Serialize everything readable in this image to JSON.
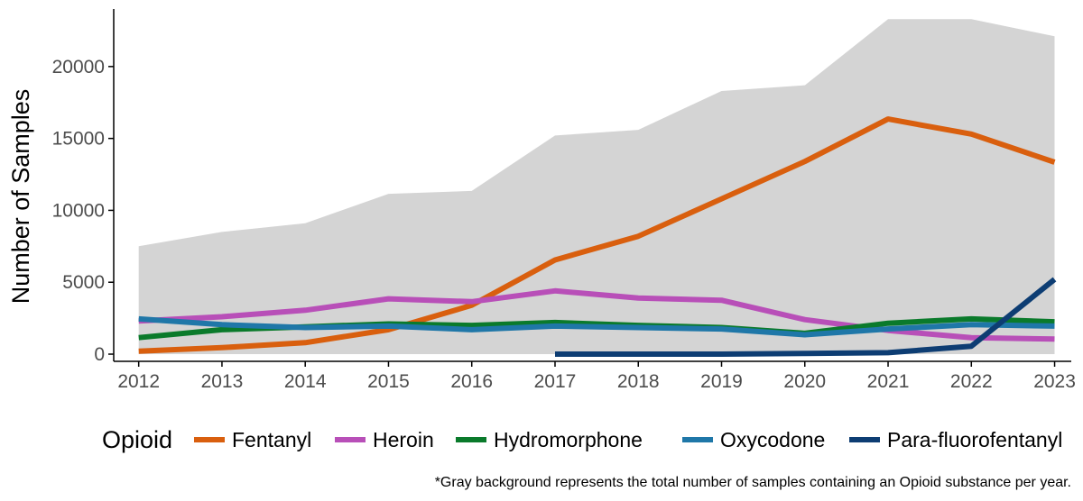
{
  "chart_data": {
    "type": "line",
    "title": "",
    "xlabel": "",
    "ylabel": "Number of Samples",
    "x": [
      2012,
      2013,
      2014,
      2015,
      2016,
      2017,
      2018,
      2019,
      2020,
      2021,
      2022,
      2023
    ],
    "xlim": [
      2011.7,
      2023.2
    ],
    "ylim": [
      -500,
      24000
    ],
    "yticks": [
      0,
      5000,
      10000,
      15000,
      20000
    ],
    "grid": false,
    "legend_position": "bottom",
    "legend_title": "Opioid",
    "background_area": {
      "values": [
        7500,
        8500,
        9100,
        11150,
        11350,
        15200,
        15600,
        18300,
        18700,
        23300,
        23300,
        22100
      ],
      "color": "#d4d4d4"
    },
    "series": [
      {
        "name": "Fentanyl",
        "color": "#d95f0e",
        "values": [
          200,
          450,
          800,
          1700,
          3400,
          6550,
          8200,
          10800,
          13400,
          16350,
          15300,
          13350
        ]
      },
      {
        "name": "Heroin",
        "color": "#b84fb8",
        "values": [
          2300,
          2600,
          3050,
          3850,
          3650,
          4400,
          3900,
          3750,
          2400,
          1650,
          1150,
          1050
        ]
      },
      {
        "name": "Hydromorphone",
        "color": "#0a7a2b",
        "values": [
          1150,
          1700,
          1900,
          2100,
          2000,
          2200,
          2000,
          1850,
          1450,
          2150,
          2450,
          2250
        ]
      },
      {
        "name": "Oxycodone",
        "color": "#1f77a8",
        "values": [
          2450,
          2050,
          1850,
          1950,
          1700,
          1950,
          1850,
          1750,
          1350,
          1750,
          2050,
          1950
        ]
      },
      {
        "name": "Para-fluorofentanyl",
        "color": "#0d3d73",
        "values": [
          null,
          null,
          null,
          null,
          null,
          0,
          0,
          0,
          50,
          100,
          550,
          5200
        ]
      }
    ],
    "footnote": "*Gray background represents the total number of samples containing an Opioid substance per year."
  }
}
